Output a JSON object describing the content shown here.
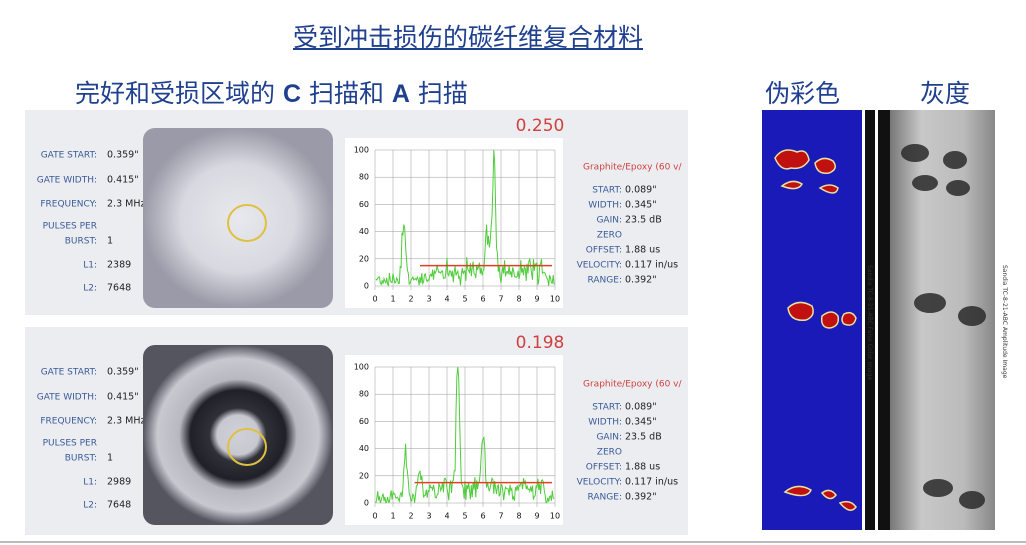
{
  "title": "受到冲击损伤的碳纤维复合材料",
  "subtitle": [
    "完好和受损区域的 ",
    "C",
    " 扫描和 ",
    "A",
    " 扫描"
  ],
  "color_label": "伪彩色",
  "gray_label": "灰度",
  "color_caption": "Sandia TC-8-21-ABC False Color Image",
  "gray_caption": "Sandia TC-8-21-ABC Amplitude Image",
  "panels": [
    {
      "reading": "0.250",
      "left": [
        {
          "label": "GATE START:",
          "value": "0.359\""
        },
        {
          "label": "GATE WIDTH:",
          "value": "0.415\""
        },
        {
          "label": "FREQUENCY:",
          "value": "2.3 MHz"
        },
        {
          "label": "PULSES PER"
        },
        {
          "label": "BURST:",
          "value": "1"
        },
        {
          "label": "L1:",
          "value": "2389"
        },
        {
          "label": "L2:",
          "value": "7648"
        }
      ],
      "material": "Graphite/Epoxy (60 v/",
      "right": [
        {
          "label": "START:",
          "value": "0.089\""
        },
        {
          "label": "WIDTH:",
          "value": "0.345\""
        },
        {
          "label": "GAIN:",
          "value": "23.5 dB"
        },
        {
          "label": "ZERO"
        },
        {
          "label": "OFFSET:",
          "value": "1.88 us"
        },
        {
          "label": "VELOCITY:",
          "value": "0.117 in/us"
        },
        {
          "label": "RANGE:",
          "value": "0.392\""
        }
      ],
      "yticks": [
        0,
        20,
        40,
        60,
        80,
        100
      ],
      "xticks": [
        0,
        1,
        2,
        3,
        4,
        5,
        6,
        7,
        8,
        9,
        10
      ]
    },
    {
      "reading": "0.198",
      "left": [
        {
          "label": "GATE START:",
          "value": "0.359\""
        },
        {
          "label": "GATE WIDTH:",
          "value": "0.415\""
        },
        {
          "label": "FREQUENCY:",
          "value": "2.3 MHz"
        },
        {
          "label": "PULSES PER"
        },
        {
          "label": "BURST:",
          "value": "1"
        },
        {
          "label": "L1:",
          "value": "2989"
        },
        {
          "label": "L2:",
          "value": "7648"
        }
      ],
      "material": "Graphite/Epoxy (60 v/",
      "right": [
        {
          "label": "START:",
          "value": "0.089\""
        },
        {
          "label": "WIDTH:",
          "value": "0.345\""
        },
        {
          "label": "GAIN:",
          "value": "23.5 dB"
        },
        {
          "label": "ZERO"
        },
        {
          "label": "OFFSET:",
          "value": "1.88 us"
        },
        {
          "label": "VELOCITY:",
          "value": "0.117 in/us"
        },
        {
          "label": "RANGE:",
          "value": "0.392\""
        }
      ],
      "yticks": [
        0,
        20,
        40,
        60,
        80,
        100
      ],
      "xticks": [
        0,
        1,
        2,
        3,
        4,
        5,
        6,
        7,
        8,
        9,
        10
      ]
    }
  ]
}
